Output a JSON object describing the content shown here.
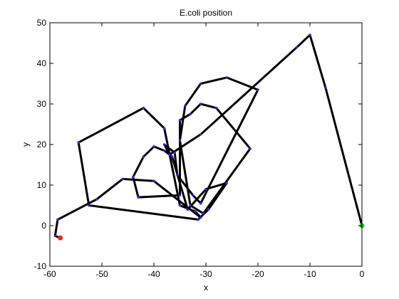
{
  "chart_data": {
    "type": "line",
    "title": "E.coli position",
    "xlabel": "x",
    "ylabel": "y",
    "xlim": [
      -60,
      0
    ],
    "ylim": [
      -10,
      50
    ],
    "xticks": [
      -60,
      -50,
      -40,
      -30,
      -20,
      -10,
      0
    ],
    "yticks": [
      -10,
      0,
      10,
      20,
      30,
      40,
      50
    ],
    "grid": false,
    "series": [
      {
        "line_color": "#000000",
        "marker_color": "#2b2bd6",
        "x": [
          0.0,
          -7.0,
          -10.0,
          -12.5,
          -31.0,
          -37.0,
          -38.0,
          -36.0,
          -35.5,
          -32.5,
          -31.0,
          -20.0,
          -26.0,
          -31.0,
          -34.0,
          -35.0,
          -33.0,
          -30.5,
          -21.5,
          -28.0,
          -31.0,
          -33.0,
          -35.0,
          -35.0,
          -43.0,
          -44.0,
          -42.0,
          -40.0,
          -38.0,
          -36.5,
          -33.5,
          -30.0,
          -26.0,
          -29.5,
          -31.5,
          -52.5,
          -54.5,
          -42.0,
          -38.0,
          -35.0,
          -32.0,
          -31.0,
          -40.0,
          -46.0,
          -51.0,
          -58.5,
          -59.0,
          -58.0
        ],
        "y": [
          0.0,
          34.0,
          47.0,
          44.0,
          22.5,
          17.5,
          20.0,
          18.0,
          12.5,
          7.5,
          5.5,
          33.5,
          36.5,
          35.0,
          29.5,
          21.0,
          5.0,
          3.0,
          19.0,
          29.0,
          30.0,
          27.5,
          26.0,
          7.5,
          7.0,
          12.0,
          17.0,
          19.5,
          18.5,
          17.0,
          4.0,
          9.0,
          10.5,
          4.0,
          1.5,
          5.0,
          20.5,
          29.0,
          24.0,
          5.0,
          3.5,
          2.0,
          11.0,
          11.5,
          6.5,
          1.5,
          -2.5,
          -3.0
        ]
      }
    ],
    "start_point": {
      "x": 0.0,
      "y": 0.0,
      "color": "#22cc22"
    },
    "end_point": {
      "x": -58.0,
      "y": -3.0,
      "color": "#ee2222"
    }
  }
}
